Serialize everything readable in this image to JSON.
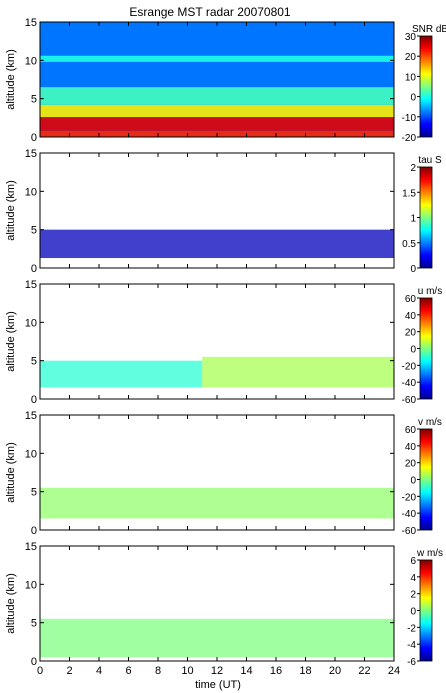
{
  "figure": {
    "title": "Esrange MST radar 20070801",
    "xlabel": "time (UT)"
  },
  "chart_data": [
    {
      "type": "heatmap",
      "title": "Esrange MST radar 20070801",
      "xlabel": "",
      "ylabel": "altitude (km)",
      "xlim": [
        0,
        24
      ],
      "ylim": [
        0,
        15
      ],
      "xticks": [
        0,
        2,
        4,
        6,
        8,
        10,
        12,
        14,
        16,
        18,
        20,
        22,
        24
      ],
      "yticks": [
        0,
        5,
        10,
        15
      ],
      "colorbar": {
        "label": "SNR dB",
        "min": -20,
        "max": 30,
        "ticks": [
          -20,
          -10,
          0,
          10,
          20,
          30
        ]
      },
      "background_value": -8,
      "layers": [
        {
          "alt_bottom": 0,
          "alt_top": 0.8,
          "value": 22
        },
        {
          "alt_bottom": 0.8,
          "alt_top": 2.6,
          "value": 25
        },
        {
          "alt_bottom": 2.6,
          "alt_top": 4.2,
          "value": 12
        },
        {
          "alt_bottom": 4.2,
          "alt_top": 6.5,
          "value": 2
        },
        {
          "alt_bottom": 9.8,
          "alt_top": 10.6,
          "value": 0
        }
      ]
    },
    {
      "type": "heatmap",
      "xlabel": "",
      "ylabel": "altitude (km)",
      "xlim": [
        0,
        24
      ],
      "ylim": [
        0,
        15
      ],
      "xticks": [
        0,
        2,
        4,
        6,
        8,
        10,
        12,
        14,
        16,
        18,
        20,
        22,
        24
      ],
      "yticks": [
        0,
        5,
        10,
        15
      ],
      "colorbar": {
        "label": "tau S",
        "min": 0,
        "max": 2,
        "ticks": [
          0,
          0.5,
          1,
          1.5,
          2
        ]
      },
      "background_value": null,
      "layers": [
        {
          "alt_bottom": 1.3,
          "alt_top": 5.0,
          "value": 0.1
        }
      ]
    },
    {
      "type": "heatmap",
      "xlabel": "",
      "ylabel": "altitude (km)",
      "xlim": [
        0,
        24
      ],
      "ylim": [
        0,
        15
      ],
      "xticks": [
        0,
        2,
        4,
        6,
        8,
        10,
        12,
        14,
        16,
        18,
        20,
        22,
        24
      ],
      "yticks": [
        0,
        5,
        10,
        15
      ],
      "colorbar": {
        "label": "u m/s",
        "min": -60,
        "max": 60,
        "ticks": [
          -60,
          -40,
          -20,
          0,
          20,
          40,
          60
        ]
      },
      "background_value": null,
      "layers": [
        {
          "alt_bottom": 1.5,
          "alt_top": 5.0,
          "value": -10,
          "x_from": 0,
          "x_to": 11
        },
        {
          "alt_bottom": 1.5,
          "alt_top": 5.5,
          "value": 5,
          "x_from": 11,
          "x_to": 24
        }
      ]
    },
    {
      "type": "heatmap",
      "xlabel": "",
      "ylabel": "altitude (km)",
      "xlim": [
        0,
        24
      ],
      "ylim": [
        0,
        15
      ],
      "xticks": [
        0,
        2,
        4,
        6,
        8,
        10,
        12,
        14,
        16,
        18,
        20,
        22,
        24
      ],
      "yticks": [
        0,
        5,
        10,
        15
      ],
      "colorbar": {
        "label": "v m/s",
        "min": -60,
        "max": 60,
        "ticks": [
          -60,
          -40,
          -20,
          0,
          20,
          40,
          60
        ]
      },
      "background_value": null,
      "layers": [
        {
          "alt_bottom": 1.5,
          "alt_top": 5.5,
          "value": 2
        }
      ]
    },
    {
      "type": "heatmap",
      "xlabel": "time (UT)",
      "ylabel": "altitude (km)",
      "xlim": [
        0,
        24
      ],
      "ylim": [
        0,
        15
      ],
      "xticks": [
        0,
        2,
        4,
        6,
        8,
        10,
        12,
        14,
        16,
        18,
        20,
        22,
        24
      ],
      "yticks": [
        0,
        5,
        10,
        15
      ],
      "colorbar": {
        "label": "w m/s",
        "min": -6,
        "max": 6,
        "ticks": [
          -6,
          -4,
          -2,
          0,
          2,
          4,
          6
        ]
      },
      "background_value": null,
      "layers": [
        {
          "alt_bottom": 0.5,
          "alt_top": 5.5,
          "value": 0
        }
      ]
    }
  ]
}
